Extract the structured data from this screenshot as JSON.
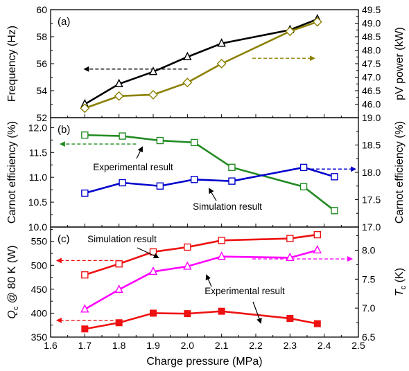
{
  "chart_data": [
    {
      "type": "line",
      "panel_label": "(a)",
      "xlim": [
        1.6,
        2.5
      ],
      "ylim_left": [
        52,
        60
      ],
      "ylim_right": [
        45.5,
        49.5
      ],
      "ylabel_left": "Frequency (Hz)",
      "ylabel_right": "pV power (kW)",
      "left_ticks": [
        "52",
        "54",
        "56",
        "58",
        "60"
      ],
      "right_ticks": [
        "46.0",
        "46.5",
        "47.0",
        "47.5",
        "48.0",
        "48.5",
        "49.0",
        "49.5"
      ],
      "grid": false,
      "series": [
        {
          "axis": "left",
          "color": "#000000",
          "marker": "triangle-open",
          "x": [
            1.7,
            1.8,
            1.9,
            2.0,
            2.1,
            2.3,
            2.38
          ],
          "y": [
            53.0,
            54.5,
            55.4,
            56.5,
            57.5,
            58.5,
            59.3
          ]
        },
        {
          "axis": "right",
          "color": "#8B8000",
          "marker": "diamond-open",
          "x": [
            1.7,
            1.8,
            1.9,
            2.0,
            2.1,
            2.3,
            2.38
          ],
          "y": [
            45.85,
            46.3,
            46.35,
            46.8,
            47.5,
            48.7,
            49.05
          ]
        }
      ],
      "arrows": [
        {
          "direction": "left",
          "color": "#000000",
          "x_from": 2.0,
          "x_to": 1.7,
          "y": 55.6,
          "axis": "left"
        },
        {
          "direction": "right",
          "color": "#8B8000",
          "x_from": 2.19,
          "x_to": 2.37,
          "y": 47.7,
          "axis": "right"
        }
      ]
    },
    {
      "type": "line",
      "panel_label": "(b)",
      "xlim": [
        1.6,
        2.5
      ],
      "ylim_left": [
        10.0,
        12.2
      ],
      "ylim_right": [
        17.0,
        19.0
      ],
      "ylabel_left": "Carnot efficiency (%)",
      "ylabel_right": "Carnot efficiency (%)",
      "left_ticks": [
        "10.0",
        "10.5",
        "11.0",
        "11.5",
        "12.0"
      ],
      "right_ticks": [
        "17.0",
        "17.5",
        "18.0",
        "18.5",
        "19.0"
      ],
      "grid": false,
      "series": [
        {
          "axis": "left",
          "color": "#228B22",
          "marker": "square-open",
          "x": [
            1.7,
            1.81,
            1.92,
            2.02,
            2.13,
            2.34,
            2.43
          ],
          "y": [
            11.85,
            11.83,
            11.74,
            11.7,
            11.2,
            10.81,
            10.33
          ]
        },
        {
          "axis": "right",
          "color": "#0000CC",
          "marker": "square-open",
          "x": [
            1.7,
            1.81,
            1.92,
            2.02,
            2.13,
            2.34,
            2.43
          ],
          "y": [
            17.62,
            17.81,
            17.75,
            17.87,
            17.84,
            18.09,
            17.92
          ]
        }
      ],
      "annotations": [
        "Experimental result",
        "Simulation result"
      ],
      "arrows": [
        {
          "direction": "left",
          "color": "#228B22",
          "x_from": 1.85,
          "x_to": 1.63,
          "y": 11.67,
          "axis": "left"
        },
        {
          "direction": "right",
          "color": "#0000CC",
          "x_from": 2.36,
          "x_to": 2.49,
          "y": 18.06,
          "axis": "right"
        }
      ]
    },
    {
      "type": "line",
      "panel_label": "(c)",
      "xlabel": "Charge pressure (MPa)",
      "xlim": [
        1.6,
        2.5
      ],
      "x_ticks": [
        "1.6",
        "1.7",
        "1.8",
        "1.9",
        "2.0",
        "2.1",
        "2.2",
        "2.3",
        "2.4",
        "2.5"
      ],
      "ylim_left": [
        350,
        580
      ],
      "ylim_right": [
        6.5,
        8.4
      ],
      "ylabel_left": "Q_c @ 80 K (W)",
      "ylabel_right": "T_c (K)",
      "left_ticks": [
        "350",
        "400",
        "450",
        "500",
        "550"
      ],
      "right_ticks": [
        "6.5",
        "7.0",
        "7.5",
        "8.0"
      ],
      "grid": false,
      "series": [
        {
          "axis": "left",
          "color": "#EE1111",
          "marker": "square-open",
          "x": [
            1.7,
            1.8,
            1.9,
            2.0,
            2.1,
            2.3,
            2.38
          ],
          "y": [
            480,
            503,
            528,
            538,
            552,
            556,
            564
          ]
        },
        {
          "axis": "left",
          "color": "#EE1111",
          "marker": "square-filled",
          "x": [
            1.7,
            1.8,
            1.9,
            2.0,
            2.1,
            2.3,
            2.38
          ],
          "y": [
            367,
            380,
            400,
            399,
            404,
            389,
            378
          ]
        },
        {
          "axis": "right",
          "color": "#FF00FF",
          "marker": "triangle-open",
          "x": [
            1.7,
            1.8,
            1.9,
            2.0,
            2.1,
            2.3,
            2.38
          ],
          "y": [
            6.98,
            7.32,
            7.63,
            7.72,
            7.89,
            7.87,
            8.0
          ]
        }
      ],
      "annotations": [
        "Simulation result",
        "Experimental result"
      ],
      "arrows": [
        {
          "direction": "left",
          "color": "#EE1111",
          "x_from": 1.8,
          "x_to": 1.62,
          "y": 510,
          "axis": "left"
        },
        {
          "direction": "left",
          "color": "#EE1111",
          "x_from": 1.8,
          "x_to": 1.62,
          "y": 385,
          "axis": "left"
        },
        {
          "direction": "right",
          "color": "#FF00FF",
          "x_from": 2.19,
          "x_to": 2.48,
          "y": 7.85,
          "axis": "right"
        }
      ]
    }
  ]
}
